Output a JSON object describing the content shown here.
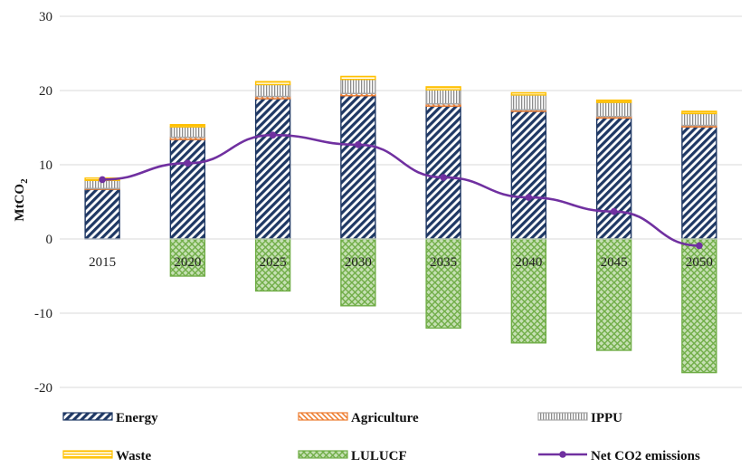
{
  "chart_data": {
    "type": "bar",
    "stacked": true,
    "categories": [
      "2015",
      "2020",
      "2025",
      "2030",
      "2035",
      "2040",
      "2045",
      "2050"
    ],
    "ylabel": "MtCO",
    "ylabel_sub": "2",
    "ylim": [
      -20,
      30
    ],
    "yticks": [
      "30",
      "20",
      "10",
      "0",
      "-10",
      "-20"
    ],
    "ytick_values": [
      30,
      20,
      10,
      0,
      -10,
      -20
    ],
    "grid": true,
    "legend_position": "bottom",
    "series": [
      {
        "name": "Energy",
        "kind": "bar",
        "color": "#1f3864",
        "pattern": "diag-dark",
        "values": [
          6.7,
          13.4,
          18.9,
          19.3,
          17.9,
          17.2,
          16.3,
          15.1
        ]
      },
      {
        "name": "Agriculture",
        "kind": "bar",
        "color": "#ed7d31",
        "pattern": "diag-orange",
        "values": [
          0.1,
          0.3,
          0.3,
          0.3,
          0.3,
          0.2,
          0.2,
          0.2
        ]
      },
      {
        "name": "IPPU",
        "kind": "bar",
        "color": "#a6a6a6",
        "pattern": "vertical-grey",
        "values": [
          1.1,
          1.4,
          1.6,
          1.9,
          1.9,
          2.0,
          1.9,
          1.6
        ]
      },
      {
        "name": "Waste",
        "kind": "bar",
        "color": "#ffc000",
        "pattern": "horizontal-yellow",
        "values": [
          0.3,
          0.3,
          0.4,
          0.4,
          0.4,
          0.3,
          0.3,
          0.3
        ]
      },
      {
        "name": "LULUCF",
        "kind": "bar",
        "color": "#70ad47",
        "pattern": "grid-green",
        "values": [
          0,
          -5.0,
          -7.0,
          -9.0,
          -12.0,
          -14.0,
          -15.0,
          -18.0
        ]
      },
      {
        "name": "Net CO2 emissions",
        "kind": "line",
        "color": "#7030a0",
        "values": [
          8.0,
          10.2,
          14.0,
          12.7,
          8.3,
          5.6,
          3.7,
          -0.9
        ]
      }
    ]
  }
}
